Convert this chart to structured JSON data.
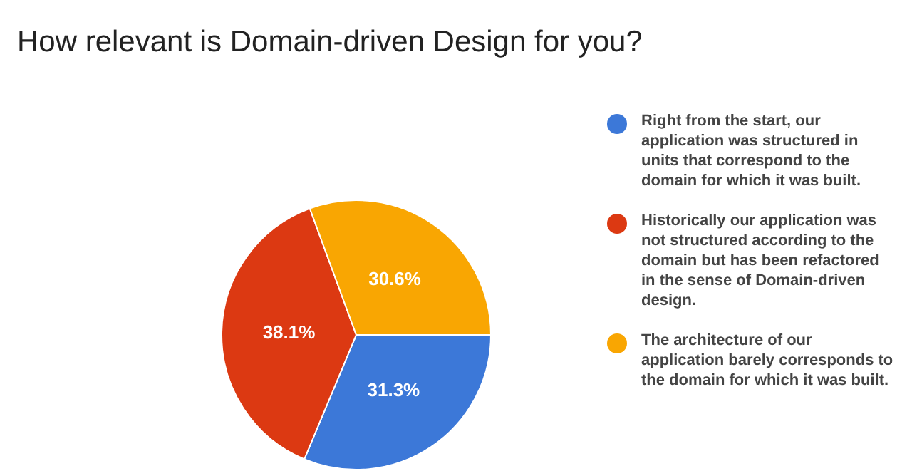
{
  "chart_data": {
    "type": "pie",
    "title": "How relevant is Domain-driven Design for you?",
    "categories": [
      "Right from the start, our application was structured in units that correspond to the domain for which it was built.",
      "Historically our application was not structured according to the domain but has been refactored in the sense of Domain-driven design.",
      "The architecture of our application barely corresponds to the domain for which it was built."
    ],
    "values": [
      31.3,
      38.1,
      30.6
    ],
    "colors": [
      "#3c78d8",
      "#dc3912",
      "#f9a602"
    ],
    "value_labels": [
      "31.3%",
      "38.1%",
      "30.6%"
    ],
    "legend": "right"
  }
}
